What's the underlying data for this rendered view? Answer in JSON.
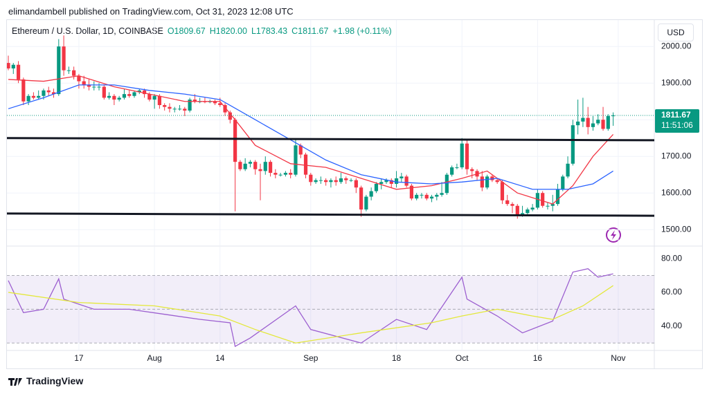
{
  "header": "elimandambell published on TradingView.com, Oct 31, 2023 12:08 UTC",
  "logo": "TradingView",
  "chart_data": [
    {
      "type": "candlestick",
      "title": "Ethereum / U.S. Dollar, 1D, COINBASE",
      "ohlc_text": [
        "O1809.67",
        "H1820.00",
        "L1783.43",
        "C1811.67",
        "+1.98 (+0.11%)"
      ],
      "currency": "USD",
      "last_price_label": "1811.67",
      "countdown": "11:51:06",
      "up_color": "#089981",
      "down_color": "#f23645",
      "grid": true,
      "x": [
        "Jul 3",
        "Jul 4",
        "Jul 5",
        "Jul 6",
        "Jul 7",
        "Jul 8",
        "Jul 9",
        "Jul 10",
        "Jul 11",
        "Jul 12",
        "Jul 13",
        "Jul 14",
        "Jul 15",
        "Jul 16",
        "Jul 17",
        "Jul 18",
        "Jul 19",
        "Jul 20",
        "Jul 21",
        "Jul 22",
        "Jul 23",
        "Jul 24",
        "Jul 25",
        "Jul 26",
        "Jul 27",
        "Jul 28",
        "Jul 29",
        "Jul 30",
        "Jul 31",
        "Aug 1",
        "Aug 2",
        "Aug 3",
        "Aug 4",
        "Aug 5",
        "Aug 6",
        "Aug 7",
        "Aug 8",
        "Aug 9",
        "Aug 10",
        "Aug 11",
        "Aug 12",
        "Aug 13",
        "Aug 14",
        "Aug 15",
        "Aug 16",
        "Aug 17",
        "Aug 18",
        "Aug 19",
        "Aug 20",
        "Aug 21",
        "Aug 22",
        "Aug 23",
        "Aug 24",
        "Aug 25",
        "Aug 26",
        "Aug 27",
        "Aug 28",
        "Aug 29",
        "Aug 30",
        "Aug 31",
        "Sep 1",
        "Sep 2",
        "Sep 3",
        "Sep 4",
        "Sep 5",
        "Sep 6",
        "Sep 7",
        "Sep 8",
        "Sep 9",
        "Sep 10",
        "Sep 11",
        "Sep 12",
        "Sep 13",
        "Sep 14",
        "Sep 15",
        "Sep 16",
        "Sep 17",
        "Sep 18",
        "Sep 19",
        "Sep 20",
        "Sep 21",
        "Sep 22",
        "Sep 23",
        "Sep 24",
        "Sep 25",
        "Sep 26",
        "Sep 27",
        "Sep 28",
        "Sep 29",
        "Sep 30",
        "Oct 1",
        "Oct 2",
        "Oct 3",
        "Oct 4",
        "Oct 5",
        "Oct 6",
        "Oct 7",
        "Oct 8",
        "Oct 9",
        "Oct 10",
        "Oct 11",
        "Oct 12",
        "Oct 13",
        "Oct 14",
        "Oct 15",
        "Oct 16",
        "Oct 17",
        "Oct 18",
        "Oct 19",
        "Oct 20",
        "Oct 21",
        "Oct 22",
        "Oct 23",
        "Oct 24",
        "Oct 25",
        "Oct 26",
        "Oct 27",
        "Oct 28",
        "Oct 29",
        "Oct 30",
        "Oct 31"
      ],
      "open": [
        1955,
        1940,
        1950,
        1910,
        1850,
        1865,
        1860,
        1865,
        1880,
        1875,
        1870,
        2000,
        1935,
        1935,
        1920,
        1905,
        1895,
        1890,
        1890,
        1890,
        1860,
        1865,
        1855,
        1860,
        1870,
        1865,
        1875,
        1880,
        1870,
        1855,
        1865,
        1840,
        1835,
        1830,
        1830,
        1830,
        1825,
        1855,
        1850,
        1850,
        1848,
        1850,
        1845,
        1840,
        1820,
        1800,
        1685,
        1665,
        1680,
        1685,
        1665,
        1660,
        1685,
        1655,
        1650,
        1650,
        1655,
        1650,
        1730,
        1705,
        1650,
        1630,
        1635,
        1635,
        1630,
        1635,
        1630,
        1640,
        1635,
        1635,
        1615,
        1555,
        1590,
        1605,
        1625,
        1630,
        1635,
        1625,
        1640,
        1645,
        1620,
        1585,
        1595,
        1595,
        1585,
        1590,
        1595,
        1600,
        1650,
        1670,
        1670,
        1735,
        1665,
        1660,
        1645,
        1615,
        1645,
        1635,
        1630,
        1580,
        1570,
        1565,
        1540,
        1545,
        1555,
        1560,
        1600,
        1565,
        1565,
        1570,
        1610,
        1645,
        1680,
        1785,
        1795,
        1805,
        1780,
        1790,
        1800,
        1775,
        1809.67
      ],
      "high": [
        1975,
        1955,
        1960,
        1915,
        1870,
        1875,
        1880,
        1885,
        1890,
        1885,
        2020,
        2030,
        1945,
        1945,
        1925,
        1920,
        1910,
        1905,
        1900,
        1895,
        1875,
        1870,
        1865,
        1885,
        1880,
        1880,
        1885,
        1885,
        1875,
        1870,
        1870,
        1845,
        1845,
        1835,
        1840,
        1835,
        1860,
        1870,
        1860,
        1860,
        1855,
        1855,
        1860,
        1845,
        1825,
        1805,
        1690,
        1695,
        1690,
        1690,
        1680,
        1700,
        1690,
        1665,
        1655,
        1660,
        1665,
        1745,
        1735,
        1710,
        1655,
        1640,
        1645,
        1640,
        1640,
        1645,
        1655,
        1645,
        1640,
        1640,
        1620,
        1595,
        1615,
        1630,
        1640,
        1640,
        1640,
        1660,
        1655,
        1650,
        1625,
        1600,
        1600,
        1600,
        1595,
        1600,
        1630,
        1655,
        1675,
        1680,
        1750,
        1745,
        1670,
        1665,
        1660,
        1650,
        1650,
        1640,
        1635,
        1595,
        1575,
        1570,
        1565,
        1560,
        1570,
        1610,
        1605,
        1575,
        1595,
        1625,
        1650,
        1700,
        1800,
        1855,
        1860,
        1835,
        1810,
        1815,
        1835,
        1815,
        1820
      ],
      "low": [
        1935,
        1925,
        1900,
        1840,
        1840,
        1855,
        1855,
        1855,
        1865,
        1860,
        1865,
        1920,
        1925,
        1910,
        1885,
        1885,
        1880,
        1880,
        1880,
        1855,
        1855,
        1840,
        1850,
        1855,
        1860,
        1860,
        1870,
        1860,
        1850,
        1830,
        1830,
        1825,
        1820,
        1820,
        1825,
        1810,
        1820,
        1845,
        1845,
        1845,
        1845,
        1840,
        1835,
        1810,
        1790,
        1550,
        1660,
        1660,
        1670,
        1650,
        1580,
        1650,
        1645,
        1640,
        1645,
        1645,
        1640,
        1645,
        1695,
        1640,
        1620,
        1625,
        1625,
        1620,
        1615,
        1620,
        1625,
        1625,
        1630,
        1600,
        1535,
        1550,
        1580,
        1600,
        1610,
        1625,
        1615,
        1615,
        1630,
        1615,
        1580,
        1580,
        1585,
        1580,
        1575,
        1580,
        1590,
        1595,
        1645,
        1665,
        1665,
        1650,
        1640,
        1635,
        1605,
        1610,
        1630,
        1625,
        1570,
        1565,
        1545,
        1530,
        1535,
        1540,
        1550,
        1555,
        1560,
        1555,
        1550,
        1565,
        1605,
        1640,
        1675,
        1760,
        1780,
        1760,
        1770,
        1785,
        1770,
        1770,
        1783.43
      ],
      "close": [
        1940,
        1950,
        1910,
        1850,
        1865,
        1860,
        1865,
        1880,
        1875,
        1870,
        2000,
        1935,
        1935,
        1920,
        1905,
        1895,
        1890,
        1890,
        1890,
        1860,
        1865,
        1855,
        1860,
        1870,
        1865,
        1875,
        1880,
        1870,
        1855,
        1865,
        1840,
        1835,
        1830,
        1830,
        1830,
        1825,
        1855,
        1850,
        1850,
        1848,
        1850,
        1845,
        1840,
        1820,
        1800,
        1685,
        1665,
        1680,
        1685,
        1665,
        1660,
        1685,
        1655,
        1650,
        1650,
        1655,
        1650,
        1730,
        1705,
        1650,
        1630,
        1635,
        1635,
        1630,
        1635,
        1630,
        1640,
        1635,
        1635,
        1615,
        1555,
        1590,
        1605,
        1625,
        1630,
        1635,
        1625,
        1640,
        1645,
        1620,
        1585,
        1595,
        1595,
        1585,
        1590,
        1595,
        1600,
        1650,
        1670,
        1670,
        1735,
        1665,
        1660,
        1645,
        1615,
        1645,
        1635,
        1630,
        1580,
        1570,
        1565,
        1540,
        1545,
        1555,
        1560,
        1600,
        1565,
        1565,
        1570,
        1610,
        1645,
        1680,
        1785,
        1795,
        1805,
        1780,
        1790,
        1800,
        1775,
        1810,
        1811.67
      ],
      "series": [
        {
          "color": "#f23645",
          "x": [
            "Jul 3",
            "Jul 10",
            "Jul 17",
            "Jul 24",
            "Jul 31",
            "Aug 7",
            "Aug 14",
            "Aug 17",
            "Aug 21",
            "Aug 28",
            "Sep 4",
            "Sep 11",
            "Sep 18",
            "Sep 25",
            "Oct 1",
            "Oct 6",
            "Oct 12",
            "Oct 19",
            "Oct 23",
            "Oct 27",
            "Oct 31"
          ],
          "values": [
            1910,
            1905,
            1920,
            1890,
            1870,
            1850,
            1850,
            1800,
            1730,
            1680,
            1670,
            1640,
            1610,
            1620,
            1640,
            1660,
            1600,
            1570,
            1620,
            1700,
            1760
          ]
        },
        {
          "color": "#2962ff",
          "x": [
            "Jul 3",
            "Jul 10",
            "Jul 17",
            "Jul 24",
            "Jul 31",
            "Aug 7",
            "Aug 14",
            "Aug 21",
            "Aug 28",
            "Sep 4",
            "Sep 11",
            "Sep 18",
            "Sep 25",
            "Oct 1",
            "Oct 8",
            "Oct 15",
            "Oct 22",
            "Oct 27",
            "Oct 31"
          ],
          "values": [
            1830,
            1860,
            1895,
            1895,
            1880,
            1870,
            1855,
            1800,
            1745,
            1690,
            1650,
            1630,
            1625,
            1630,
            1640,
            1610,
            1610,
            1625,
            1660
          ]
        }
      ],
      "trendlines": [
        [
          1750,
          1744
        ],
        [
          1544,
          1538
        ]
      ],
      "ylim": [
        1457,
        2074
      ],
      "yticks": [
        {
          "value": 1500,
          "label": "1500.00"
        },
        {
          "value": 1600,
          "label": "1600.00"
        },
        {
          "value": 1700,
          "label": "1700.00"
        },
        {
          "value": 1800,
          "label": "1800.00"
        },
        {
          "value": 1900,
          "label": "1900.00"
        },
        {
          "value": 2000,
          "label": "2000.00"
        }
      ],
      "xticks": [
        {
          "value": "Jul 17",
          "label": "17"
        },
        {
          "value": "Aug 1",
          "label": "Aug"
        },
        {
          "value": "Aug 14",
          "label": "14"
        },
        {
          "value": "Sep 1",
          "label": "Sep"
        },
        {
          "value": "Sep 18",
          "label": "18"
        },
        {
          "value": "Oct 1",
          "label": "Oct"
        },
        {
          "value": "Oct 16",
          "label": "16"
        },
        {
          "value": "Nov 1",
          "label": "Nov"
        }
      ]
    },
    {
      "type": "line",
      "ylim": [
        26,
        87
      ],
      "band": [
        30,
        70
      ],
      "midline": 50,
      "band_color": "#7e57c2",
      "yticks": [
        {
          "value": 40,
          "label": "40.00"
        },
        {
          "value": 60,
          "label": "60.00"
        },
        {
          "value": 80,
          "label": "80.00"
        }
      ],
      "series": [
        {
          "color": "#9c5fd0",
          "x": [
            "Jul 3",
            "Jul 6",
            "Jul 10",
            "Jul 13",
            "Jul 14",
            "Jul 20",
            "Jul 27",
            "Aug 3",
            "Aug 10",
            "Aug 16",
            "Aug 17",
            "Aug 20",
            "Aug 29",
            "Sep 1",
            "Sep 11",
            "Sep 18",
            "Sep 24",
            "Oct 1",
            "Oct 2",
            "Oct 8",
            "Oct 13",
            "Oct 19",
            "Oct 23",
            "Oct 26",
            "Oct 28",
            "Oct 31"
          ],
          "values": [
            67,
            48,
            50,
            68,
            56,
            50,
            50,
            47,
            44,
            42,
            28,
            33,
            52,
            38,
            30,
            44,
            38,
            69,
            56,
            46,
            36,
            43,
            72,
            74,
            69,
            71
          ]
        },
        {
          "color": "#e3e83a",
          "x": [
            "Jul 3",
            "Jul 17",
            "Aug 1",
            "Aug 14",
            "Aug 21",
            "Aug 29",
            "Sep 11",
            "Sep 25",
            "Oct 1",
            "Oct 8",
            "Oct 15",
            "Oct 19",
            "Oct 25",
            "Oct 31"
          ],
          "values": [
            60,
            54,
            52,
            46,
            38,
            30,
            36,
            42,
            46,
            50,
            46,
            44,
            52,
            64
          ]
        }
      ]
    }
  ]
}
